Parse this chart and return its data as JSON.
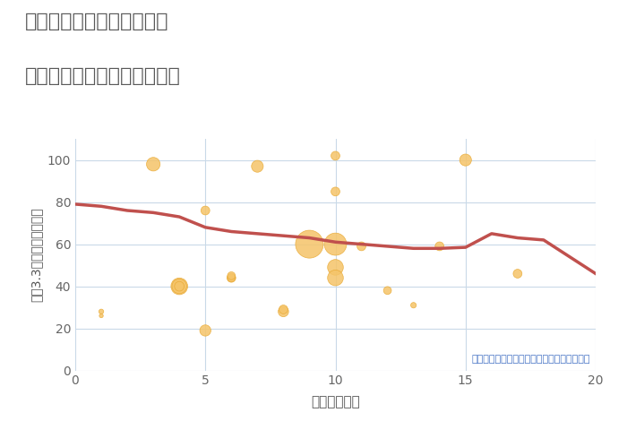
{
  "title_line1": "三重県四日市市高浜新町の",
  "title_line2": "駅距離別中古マンション価格",
  "xlabel": "駅距離（分）",
  "ylabel": "坪（3.3㎡）単価（万円）",
  "annotation": "円の大きさは、取引のあった物件面積を示す",
  "xlim": [
    0,
    20
  ],
  "ylim": [
    0,
    110
  ],
  "xticks": [
    0,
    5,
    10,
    15,
    20
  ],
  "yticks": [
    0,
    20,
    40,
    60,
    80,
    100
  ],
  "bubble_color": "#F5C469",
  "bubble_edge_color": "#E8A830",
  "line_color": "#C0504D",
  "grid_color": "#C9D9E8",
  "bg_color": "#FFFFFF",
  "title_color": "#595959",
  "annotation_color": "#4472C4",
  "scatter_x": [
    1,
    1,
    3,
    4,
    4,
    4,
    5,
    5,
    6,
    6,
    6,
    7,
    8,
    8,
    9,
    10,
    10,
    10,
    10,
    10,
    11,
    12,
    13,
    14,
    15,
    17
  ],
  "scatter_y": [
    28,
    26,
    98,
    40,
    40,
    40,
    19,
    76,
    44,
    44,
    45,
    97,
    28,
    29,
    60,
    102,
    85,
    60,
    49,
    44,
    59,
    38,
    31,
    59,
    100,
    46
  ],
  "scatter_s": [
    15,
    10,
    120,
    180,
    140,
    60,
    80,
    50,
    50,
    40,
    40,
    90,
    70,
    50,
    500,
    50,
    50,
    320,
    160,
    160,
    50,
    40,
    20,
    50,
    90,
    50
  ],
  "line_x": [
    0,
    1,
    2,
    3,
    4,
    5,
    6,
    7,
    8,
    9,
    10,
    11,
    12,
    13,
    14,
    15,
    16,
    17,
    18,
    19,
    20
  ],
  "line_y": [
    79,
    78,
    76,
    75,
    73,
    68,
    66,
    65,
    64,
    63,
    61,
    60,
    59,
    58,
    58,
    58.5,
    65,
    63,
    62,
    54,
    46
  ]
}
